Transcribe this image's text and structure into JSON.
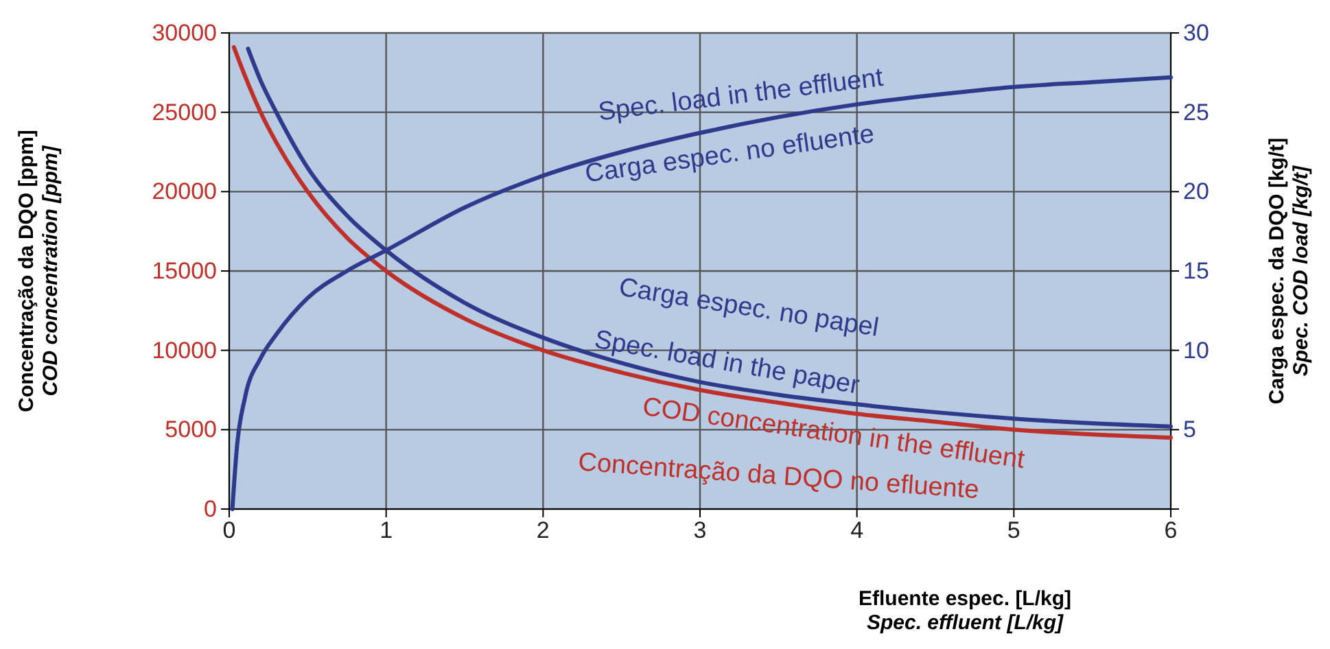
{
  "chart_data": {
    "type": "line",
    "xlabel": "Efluente espec. [L/kg]\nSpec. effluent [L/kg]",
    "ylabel": "Concentração da DQO [ppm]\nCOD concentration [ppm]",
    "y2label": "Carga espec. da DQO [kg/t]\nSpec. COD load [kg/t]",
    "xlim": [
      0,
      6
    ],
    "xticks": [
      0,
      1,
      2,
      3,
      4,
      5,
      6
    ],
    "ylim": [
      0,
      30000
    ],
    "yticks": [
      0,
      5000,
      10000,
      15000,
      20000,
      25000,
      30000
    ],
    "y2lim": [
      0,
      30
    ],
    "y2ticks": [
      5,
      10,
      15,
      20,
      25,
      30
    ],
    "grid": true,
    "line_style": "solid",
    "marker": "none",
    "series": [
      {
        "color": "#c0302a",
        "x": [
          0.03,
          0.1,
          0.2,
          0.3,
          0.5,
          0.75,
          1,
          1.5,
          2,
          2.5,
          3,
          3.5,
          4,
          4.5,
          5,
          5.5,
          6
        ],
        "values": [
          29100,
          27300,
          25000,
          23100,
          20000,
          17100,
          15000,
          12000,
          10000,
          8600,
          7500,
          6700,
          6000,
          5500,
          5000,
          4700,
          4500
        ]
      },
      {
        "color": "#2e3a8c",
        "axis": "y2",
        "x": [
          0.12,
          0.2,
          0.3,
          0.5,
          0.75,
          1,
          1.5,
          2,
          2.5,
          3,
          3.5,
          4,
          4.5,
          5,
          5.5,
          6
        ],
        "values": [
          29,
          27,
          25,
          21.5,
          18.5,
          16.3,
          13,
          10.8,
          9.2,
          8,
          7.2,
          6.6,
          6.1,
          5.7,
          5.4,
          5.2
        ]
      },
      {
        "color": "#2e3a8c",
        "axis": "y2",
        "x": [
          0.02,
          0.05,
          0.1,
          0.2,
          0.3,
          0.5,
          0.75,
          1,
          1.5,
          2,
          2.5,
          3,
          3.5,
          4,
          4.5,
          5,
          5.5,
          6
        ],
        "values": [
          0,
          4,
          7,
          9.5,
          11,
          13.3,
          15,
          16.3,
          19,
          21,
          22.5,
          23.7,
          24.7,
          25.5,
          26.1,
          26.6,
          26.9,
          27.2
        ]
      }
    ],
    "annotations": [
      "Spec. load in the effluent",
      "Carga espec. no efluente",
      "Carga espec. no papel",
      "Spec. load in the paper",
      "COD concentration in the effluent",
      "Concentração da DQO no efluente"
    ]
  }
}
